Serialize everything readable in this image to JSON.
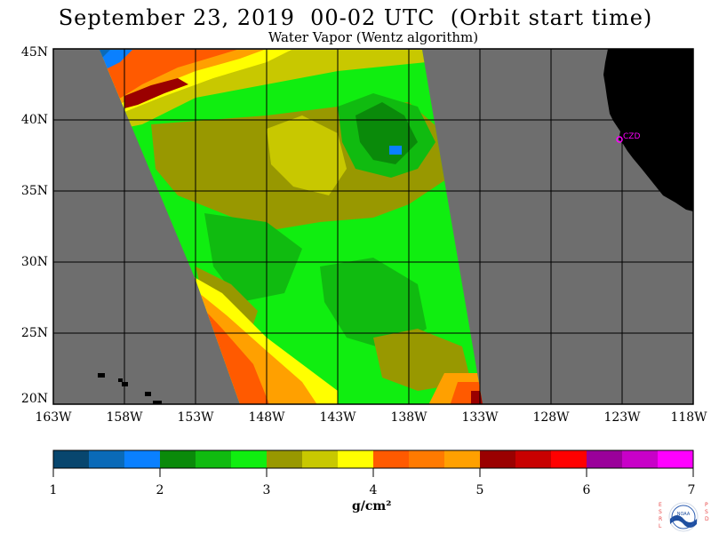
{
  "title": "September 23, 2019  00-02 UTC  (Orbit start time)",
  "subtitle": "Water Vapor (Wentz algorithm)",
  "map": {
    "lat_labels": [
      "45N",
      "40N",
      "35N",
      "30N",
      "25N",
      "20N"
    ],
    "lon_labels": [
      "163W",
      "158W",
      "153W",
      "148W",
      "143W",
      "138W",
      "133W",
      "128W",
      "123W",
      "118W"
    ],
    "station_label": "CZD",
    "colors": {
      "land": "#000000",
      "no_data": "#6e6e6e",
      "grid": "#000000",
      "station": "#ff00ff"
    }
  },
  "colorbar": {
    "ticks": [
      "1",
      "2",
      "3",
      "4",
      "5",
      "6",
      "7"
    ],
    "unit": "g/cm²",
    "colors": [
      "#08466e",
      "#0a6ab8",
      "#0a80ff",
      "#0a8a0a",
      "#10bb10",
      "#10ee10",
      "#989800",
      "#c8c800",
      "#ffff00",
      "#ff5a00",
      "#ff7a00",
      "#ffa000",
      "#9a0000",
      "#c80000",
      "#ff0000",
      "#9a009a",
      "#c800c8",
      "#ff00ff"
    ]
  },
  "logo": {
    "left_letters": "ESRL",
    "right_letters": "PSD",
    "center_text": "NOAA"
  }
}
